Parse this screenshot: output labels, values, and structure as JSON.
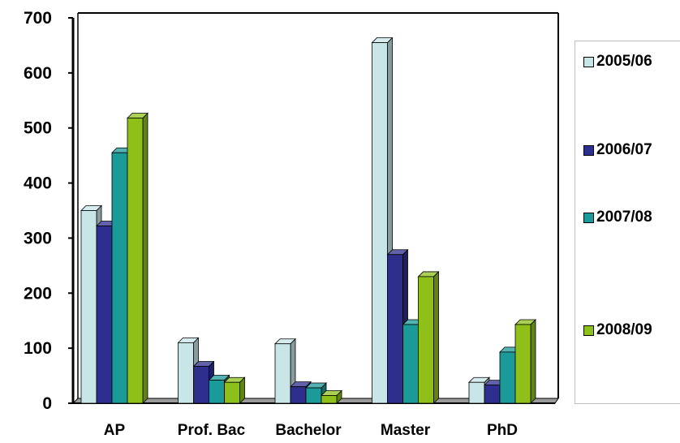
{
  "chart_data": {
    "type": "bar",
    "categories": [
      "AP",
      "Prof. Bac",
      "Bachelor",
      "Master",
      "PhD"
    ],
    "series": [
      {
        "name": "2005/06",
        "color": "#c8e6e8",
        "values": [
          350,
          110,
          108,
          655,
          38
        ]
      },
      {
        "name": "2006/07",
        "color": "#2e2e8e",
        "values": [
          322,
          67,
          30,
          270,
          33
        ]
      },
      {
        "name": "2007/08",
        "color": "#1a9a98",
        "values": [
          455,
          42,
          28,
          143,
          93
        ]
      },
      {
        "name": "2008/09",
        "color": "#8fc01a",
        "values": [
          518,
          38,
          14,
          230,
          143
        ]
      }
    ],
    "ylim": [
      0,
      700
    ],
    "yticks": [
      0,
      100,
      200,
      300,
      400,
      500,
      600,
      700
    ],
    "legend_position": "right",
    "grid": false
  }
}
